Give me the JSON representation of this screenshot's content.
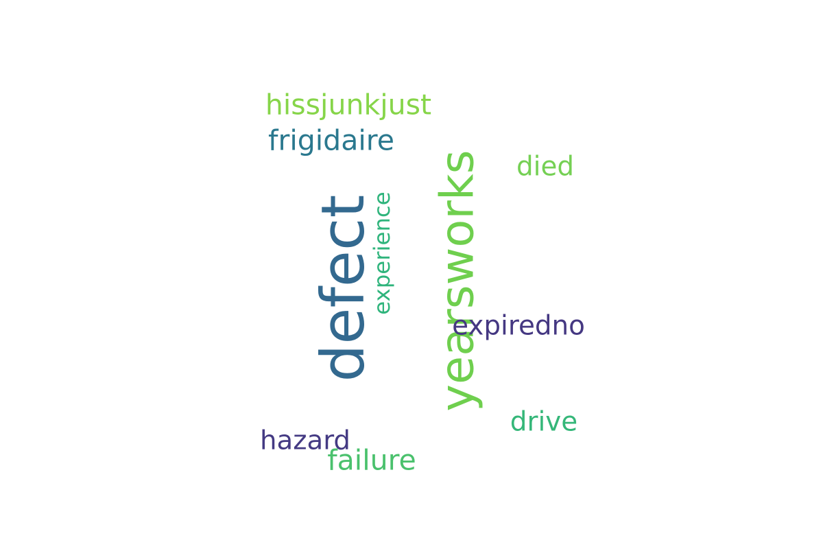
{
  "words": {
    "yearsworks": {
      "text": "yearsworks",
      "color": "#6fcf4e",
      "rotated": true
    },
    "defect": {
      "text": "defect",
      "color": "#33698f",
      "rotated": true
    },
    "experience": {
      "text": "experience",
      "color": "#2fb47c",
      "rotated": true
    },
    "hissjunkjust": {
      "text": "hissjunkjust",
      "color": "#86d549",
      "rotated": false
    },
    "frigidaire": {
      "text": "frigidaire",
      "color": "#2a788e",
      "rotated": false
    },
    "died": {
      "text": "died",
      "color": "#75d054",
      "rotated": false
    },
    "expiredno": {
      "text": "expiredno",
      "color": "#453882",
      "rotated": false
    },
    "drive": {
      "text": "drive",
      "color": "#35b779",
      "rotated": false
    },
    "hazard": {
      "text": "hazard",
      "color": "#443a83",
      "rotated": false
    },
    "failure": {
      "text": "failure",
      "color": "#4ac16d",
      "rotated": false
    }
  }
}
